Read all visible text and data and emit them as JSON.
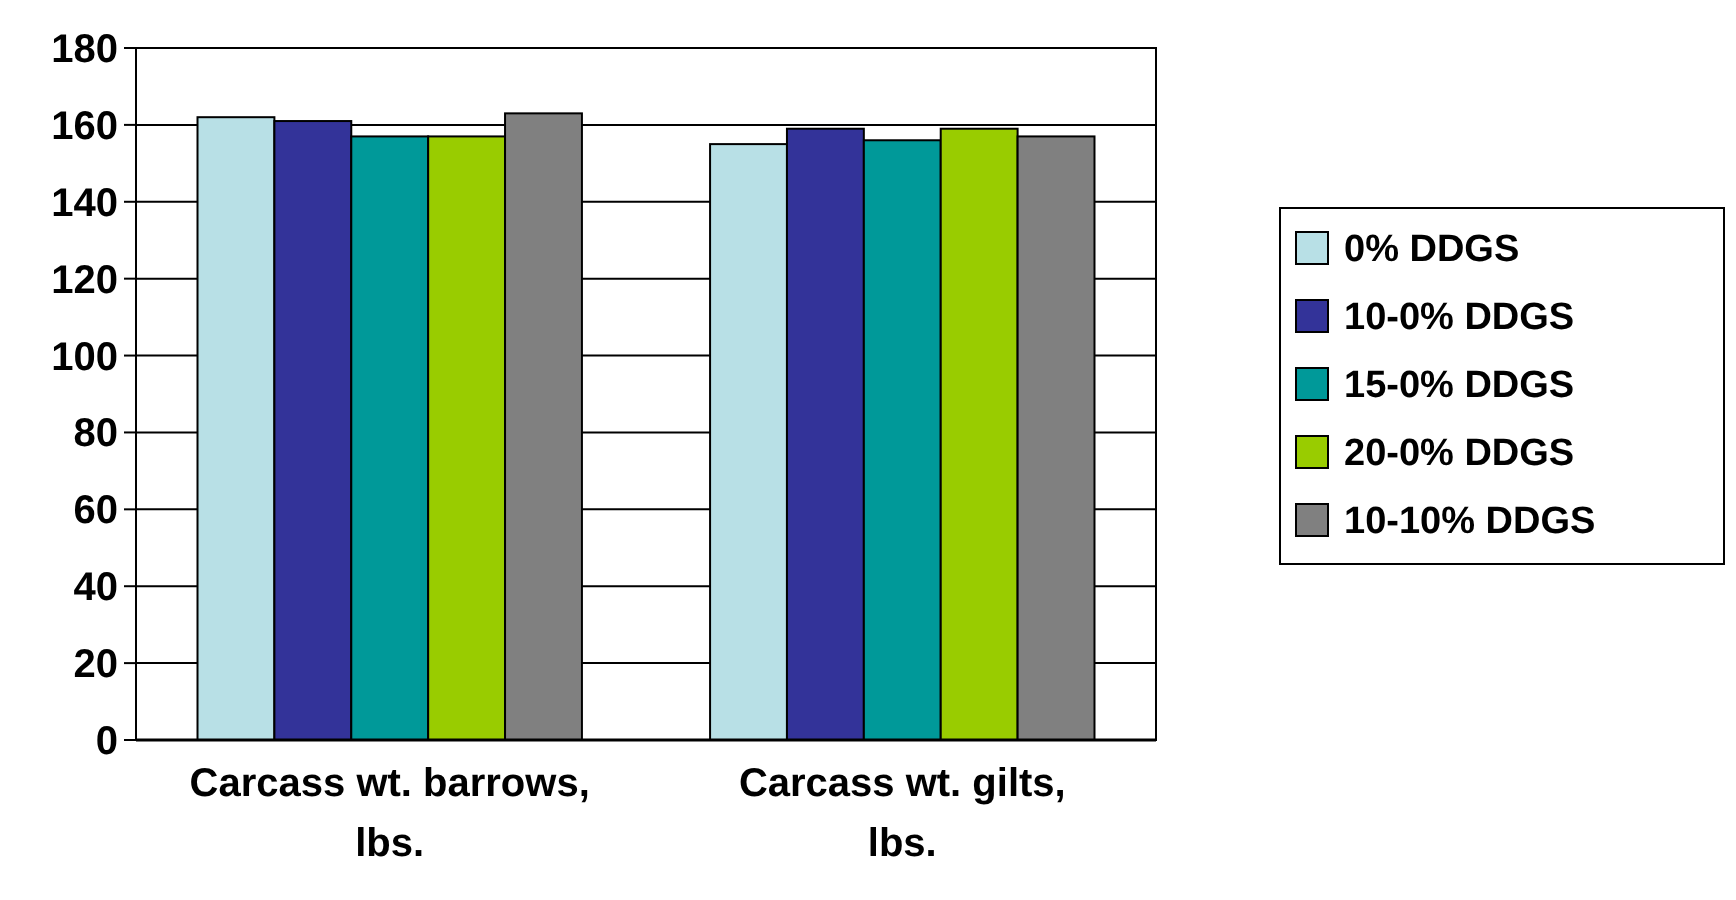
{
  "chart_data": {
    "type": "bar",
    "categories": [
      "Carcass wt. barrows, lbs.",
      "Carcass wt. gilts, lbs."
    ],
    "series": [
      {
        "name": "0% DDGS",
        "color": "#b8e0e6",
        "values": [
          162,
          155
        ]
      },
      {
        "name": "10-0% DDGS",
        "color": "#333399",
        "values": [
          161,
          159
        ]
      },
      {
        "name": "15-0% DDGS",
        "color": "#009999",
        "values": [
          157,
          156
        ]
      },
      {
        "name": "20-0% DDGS",
        "color": "#99cc00",
        "values": [
          157,
          159
        ]
      },
      {
        "name": "10-10% DDGS",
        "color": "#808080",
        "values": [
          163,
          157
        ]
      }
    ],
    "ylim": [
      0,
      180
    ],
    "yticks": [
      0,
      20,
      40,
      60,
      80,
      100,
      120,
      140,
      160,
      180
    ],
    "grid": "y",
    "legend": "right"
  }
}
